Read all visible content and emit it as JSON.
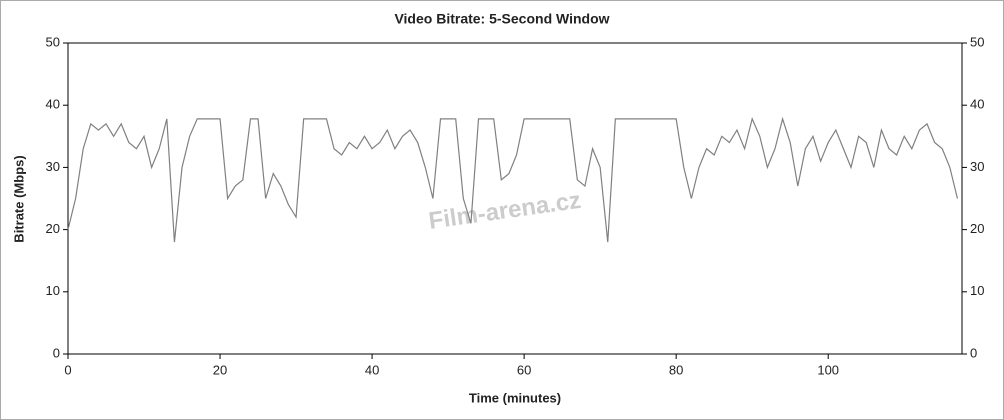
{
  "chart_data": {
    "type": "line",
    "title": "Video Bitrate: 5-Second Window",
    "xlabel": "Time (minutes)",
    "ylabel": "Bitrate (Mbps)",
    "watermark": "Film-arena.cz",
    "x": [
      0,
      1,
      2,
      3,
      4,
      5,
      6,
      7,
      8,
      9,
      10,
      11,
      12,
      13,
      14,
      15,
      16,
      17,
      18,
      19,
      20,
      21,
      22,
      23,
      24,
      25,
      26,
      27,
      28,
      29,
      30,
      31,
      32,
      33,
      34,
      35,
      36,
      37,
      38,
      39,
      40,
      41,
      42,
      43,
      44,
      45,
      46,
      47,
      48,
      49,
      50,
      51,
      52,
      53,
      54,
      55,
      56,
      57,
      58,
      59,
      60,
      61,
      62,
      63,
      64,
      65,
      66,
      67,
      68,
      69,
      70,
      71,
      72,
      73,
      74,
      75,
      76,
      77,
      78,
      79,
      80,
      81,
      82,
      83,
      84,
      85,
      86,
      87,
      88,
      89,
      90,
      91,
      92,
      93,
      94,
      95,
      96,
      97,
      98,
      99,
      100,
      101,
      102,
      103,
      104,
      105,
      106,
      107,
      108,
      109,
      110,
      111,
      112,
      113,
      114,
      115,
      116,
      117
    ],
    "series": [
      {
        "name": "Video Bitrate",
        "color": "#808080",
        "values": [
          20,
          25,
          33,
          37,
          36,
          37,
          35,
          37,
          34,
          33,
          35,
          30,
          33,
          37.8,
          18,
          30,
          35,
          37.8,
          37.8,
          37.8,
          37.8,
          25,
          27,
          28,
          37.8,
          37.8,
          25,
          29,
          27,
          24,
          22,
          37.8,
          37.8,
          37.8,
          37.8,
          33,
          32,
          34,
          33,
          35,
          33,
          34,
          36,
          33,
          35,
          36,
          34,
          30,
          25,
          37.8,
          37.8,
          37.8,
          25,
          21,
          37.8,
          37.8,
          37.8,
          28,
          29,
          32,
          37.8,
          37.8,
          37.8,
          37.8,
          37.8,
          37.8,
          37.8,
          28,
          27,
          33,
          30,
          18,
          37.8,
          37.8,
          37.8,
          37.8,
          37.8,
          37.8,
          37.8,
          37.8,
          37.8,
          30,
          25,
          30,
          33,
          32,
          35,
          34,
          36,
          33,
          37.8,
          35,
          30,
          33,
          37.8,
          34,
          27,
          33,
          35,
          31,
          34,
          36,
          33,
          30,
          35,
          34,
          30,
          36,
          33,
          32,
          35,
          33,
          36,
          37,
          34,
          33,
          30,
          25
        ]
      }
    ],
    "xlim": [
      0,
      117.6
    ],
    "xticks": [
      0,
      20,
      40,
      60,
      80,
      100
    ],
    "ylim": [
      0,
      50
    ],
    "yticks": [
      0,
      10,
      20,
      30,
      40,
      50
    ],
    "y2lim": [
      0,
      50
    ],
    "y2ticks": [
      0,
      10,
      20,
      30,
      40,
      50
    ]
  }
}
